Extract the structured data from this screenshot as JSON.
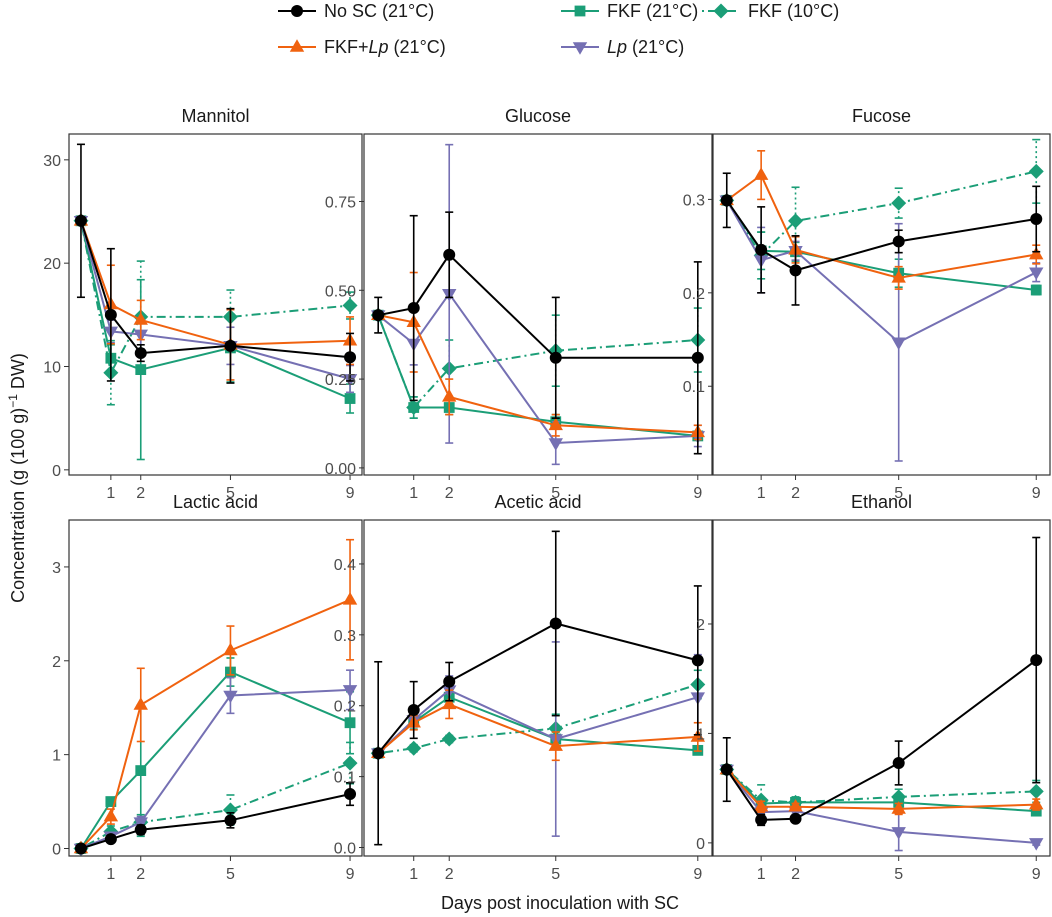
{
  "figure": {
    "ylabel_main": "Concentration (g (100 g)",
    "ylabel_sup": "−1",
    "ylabel_end": " DW)",
    "xlabel": "Days post inoculation with SC"
  },
  "legend": [
    {
      "key": "nosc",
      "text": "No SC (21°C)",
      "color": "#000000",
      "marker": "circle",
      "dash": "solid"
    },
    {
      "key": "fkf21",
      "text": "FKF (21°C)",
      "color": "#1b9e77",
      "marker": "square",
      "dash": "solid"
    },
    {
      "key": "fkf10",
      "text": "FKF (10°C)",
      "color": "#1b9e77",
      "marker": "diamond",
      "dash": "dotdash"
    },
    {
      "key": "fkflp",
      "text_pre": "FKF+",
      "text_it": "Lp",
      "text_post": " (21°C)",
      "color": "#f0620f",
      "marker": "triangle-up",
      "dash": "solid"
    },
    {
      "key": "lp",
      "text_pre": "",
      "text_it": "Lp",
      "text_post": " (21°C)",
      "color": "#7570b3",
      "marker": "triangle-down",
      "dash": "solid"
    }
  ],
  "chart_data": [
    {
      "type": "line",
      "title": "Mannitol",
      "xlabel": "Days post inoculation with SC",
      "ylabel": "Concentration (g (100 g)−1 DW)",
      "xlim": [
        -0.4,
        9.4
      ],
      "ylim": [
        -0.5,
        32.5
      ],
      "xticks": [
        1,
        2,
        5,
        9
      ],
      "yticks": [
        0,
        10,
        20,
        30
      ],
      "ytick_labels": [
        "0",
        "10",
        "20",
        "30"
      ],
      "series": [
        {
          "name": "No SC (21°C)",
          "x": [
            0,
            1,
            2,
            5,
            9
          ],
          "y": [
            24.1,
            15.0,
            11.3,
            12.0,
            10.9
          ],
          "err": [
            7.4,
            6.4,
            0.8,
            3.6,
            2.3
          ]
        },
        {
          "name": "FKF (21°C)",
          "x": [
            0,
            1,
            2,
            5,
            9
          ],
          "y": [
            24.1,
            10.8,
            9.7,
            11.8,
            6.9
          ],
          "err": [
            0.3,
            1.3,
            8.7,
            3.3,
            1.4
          ]
        },
        {
          "name": "FKF (10°C)",
          "x": [
            0,
            1,
            2,
            5,
            9
          ],
          "y": [
            24.1,
            9.4,
            14.8,
            14.8,
            15.9
          ],
          "err": [
            0.3,
            3.1,
            5.4,
            2.6,
            1.3
          ]
        },
        {
          "name": "FKF+Lp (21°C)",
          "x": [
            0,
            1,
            2,
            5,
            9
          ],
          "y": [
            24.1,
            16.0,
            14.5,
            12.1,
            12.5
          ],
          "err": [
            0.3,
            3.8,
            1.9,
            3.4,
            2.3
          ]
        },
        {
          "name": "Lp (21°C)",
          "x": [
            0,
            1,
            2,
            5,
            9
          ],
          "y": [
            24.1,
            13.4,
            13.1,
            12.0,
            8.8
          ],
          "err": [
            0.3,
            1.1,
            1.4,
            1.8,
            1.3
          ]
        }
      ]
    },
    {
      "type": "line",
      "title": "Glucose",
      "xlabel": "Days post inoculation with SC",
      "ylabel": "Concentration (g (100 g)−1 DW)",
      "xlim": [
        -0.4,
        9.4
      ],
      "ylim": [
        -0.02,
        0.94
      ],
      "xticks": [
        1,
        2,
        5,
        9
      ],
      "yticks": [
        0,
        0.25,
        0.5,
        0.75
      ],
      "ytick_labels": [
        "0.00",
        "0.25",
        "0.50",
        "0.75"
      ],
      "series": [
        {
          "name": "No SC (21°C)",
          "x": [
            0,
            1,
            2,
            5,
            9
          ],
          "y": [
            0.43,
            0.45,
            0.6,
            0.31,
            0.31
          ],
          "err": [
            0.05,
            0.26,
            0.12,
            0.17,
            0.27
          ]
        },
        {
          "name": "FKF (21°C)",
          "x": [
            0,
            1,
            2,
            5,
            9
          ],
          "y": [
            0.43,
            0.17,
            0.17,
            0.13,
            0.09
          ],
          "err": [
            0.01,
            0.03,
            0.02,
            0.02,
            0.01
          ]
        },
        {
          "name": "FKF (10°C)",
          "x": [
            0,
            1,
            2,
            5,
            9
          ],
          "y": [
            0.43,
            0.17,
            0.28,
            0.33,
            0.36
          ],
          "err": [
            0.01,
            0.03,
            0.08,
            0.1,
            0.09
          ]
        },
        {
          "name": "FKF+Lp (21°C)",
          "x": [
            0,
            1,
            2,
            5,
            9
          ],
          "y": [
            0.43,
            0.41,
            0.2,
            0.12,
            0.1
          ],
          "err": [
            0.01,
            0.14,
            0.05,
            0.03,
            0.02
          ]
        },
        {
          "name": "Lp (21°C)",
          "x": [
            0,
            1,
            2,
            5,
            9
          ],
          "y": [
            0.43,
            0.35,
            0.49,
            0.07,
            0.09
          ],
          "err": [
            0.01,
            0.06,
            0.42,
            0.06,
            0.03
          ]
        }
      ]
    },
    {
      "type": "line",
      "title": "Fucose",
      "xlabel": "Days post inoculation with SC",
      "ylabel": "Concentration (g (100 g)−1 DW)",
      "xlim": [
        -0.4,
        9.4
      ],
      "ylim": [
        0.005,
        0.37
      ],
      "xticks": [
        1,
        2,
        5,
        9
      ],
      "yticks": [
        0.1,
        0.2,
        0.3
      ],
      "ytick_labels": [
        "0.1",
        "0.2",
        "0.3"
      ],
      "series": [
        {
          "name": "No SC (21°C)",
          "x": [
            0,
            1,
            2,
            5,
            9
          ],
          "y": [
            0.299,
            0.246,
            0.224,
            0.255,
            0.279
          ],
          "err": [
            0.029,
            0.046,
            0.037,
            0.012,
            0.035
          ]
        },
        {
          "name": "FKF (21°C)",
          "x": [
            0,
            1,
            2,
            5,
            9
          ],
          "y": [
            0.299,
            0.245,
            0.244,
            0.221,
            0.203
          ],
          "err": [
            0.003,
            0.02,
            0.01,
            0.015,
            0.005
          ]
        },
        {
          "name": "FKF (10°C)",
          "x": [
            0,
            1,
            2,
            5,
            9
          ],
          "y": [
            0.299,
            0.24,
            0.277,
            0.296,
            0.33
          ],
          "err": [
            0.003,
            0.025,
            0.036,
            0.016,
            0.034
          ]
        },
        {
          "name": "FKF+Lp (21°C)",
          "x": [
            0,
            1,
            2,
            5,
            9
          ],
          "y": [
            0.299,
            0.326,
            0.246,
            0.216,
            0.241
          ],
          "err": [
            0.003,
            0.026,
            0.014,
            0.012,
            0.01
          ]
        },
        {
          "name": "Lp (21°C)",
          "x": [
            0,
            1,
            2,
            5,
            9
          ],
          "y": [
            0.299,
            0.235,
            0.245,
            0.147,
            0.222
          ],
          "err": [
            0.003,
            0.035,
            0.01,
            0.127,
            0.01
          ]
        }
      ]
    },
    {
      "type": "line",
      "title": "Lactic acid",
      "xlabel": "Days post inoculation with SC",
      "ylabel": "Concentration (g (100 g)−1 DW)",
      "xlim": [
        -0.4,
        9.4
      ],
      "ylim": [
        -0.08,
        3.5
      ],
      "xticks": [
        1,
        2,
        5,
        9
      ],
      "yticks": [
        0,
        1,
        2,
        3
      ],
      "ytick_labels": [
        "0",
        "1",
        "2",
        "3"
      ],
      "series": [
        {
          "name": "No SC (21°C)",
          "x": [
            0,
            1,
            2,
            5,
            9
          ],
          "y": [
            0,
            0.1,
            0.2,
            0.3,
            0.58
          ],
          "err": [
            0.02,
            0.03,
            0.05,
            0.08,
            0.12
          ]
        },
        {
          "name": "FKF (21°C)",
          "x": [
            0,
            1,
            2,
            5,
            9
          ],
          "y": [
            0,
            0.5,
            0.83,
            1.88,
            1.34
          ],
          "err": [
            0.02,
            0.03,
            0.7,
            0.15,
            0.33
          ]
        },
        {
          "name": "FKF (10°C)",
          "x": [
            0,
            1,
            2,
            5,
            9
          ],
          "y": [
            0,
            0.18,
            0.28,
            0.41,
            0.91
          ],
          "err": [
            0.02,
            0.06,
            0.08,
            0.16,
            0.22
          ]
        },
        {
          "name": "FKF+Lp (21°C)",
          "x": [
            0,
            1,
            2,
            5,
            9
          ],
          "y": [
            0,
            0.34,
            1.53,
            2.11,
            2.65
          ],
          "err": [
            0.02,
            0.08,
            0.39,
            0.26,
            0.64
          ]
        },
        {
          "name": "Lp (21°C)",
          "x": [
            0,
            1,
            2,
            5,
            9
          ],
          "y": [
            0,
            0.13,
            0.28,
            1.63,
            1.69
          ],
          "err": [
            0.02,
            0.04,
            0.06,
            0.19,
            0.21
          ]
        }
      ]
    },
    {
      "type": "line",
      "title": "Acetic acid",
      "xlabel": "Days post inoculation with SC",
      "ylabel": "Concentration (g (100 g)−1 DW)",
      "xlim": [
        -0.4,
        9.4
      ],
      "ylim": [
        -0.012,
        0.462
      ],
      "xticks": [
        1,
        2,
        5,
        9
      ],
      "yticks": [
        0,
        0.1,
        0.2,
        0.3,
        0.4
      ],
      "ytick_labels": [
        "0.0",
        "0.1",
        "0.2",
        "0.3",
        "0.4"
      ],
      "series": [
        {
          "name": "No SC (21°C)",
          "x": [
            0,
            1,
            2,
            5,
            9
          ],
          "y": [
            0.133,
            0.194,
            0.234,
            0.316,
            0.264
          ],
          "err": [
            0.129,
            0.04,
            0.027,
            0.13,
            0.105
          ]
        },
        {
          "name": "FKF (21°C)",
          "x": [
            0,
            1,
            2,
            5,
            9
          ],
          "y": [
            0.133,
            0.177,
            0.212,
            0.153,
            0.137
          ],
          "err": [
            0.002,
            0.01,
            0.01,
            0.01,
            0.005
          ]
        },
        {
          "name": "FKF (10°C)",
          "x": [
            0,
            1,
            2,
            5,
            9
          ],
          "y": [
            0.133,
            0.14,
            0.153,
            0.168,
            0.23
          ],
          "err": [
            0.002,
            0.005,
            0.005,
            0.02,
            0.02
          ]
        },
        {
          "name": "FKF+Lp (21°C)",
          "x": [
            0,
            1,
            2,
            5,
            9
          ],
          "y": [
            0.133,
            0.176,
            0.202,
            0.143,
            0.156
          ],
          "err": [
            0.002,
            0.01,
            0.02,
            0.02,
            0.02
          ]
        },
        {
          "name": "Lp (21°C)",
          "x": [
            0,
            1,
            2,
            5,
            9
          ],
          "y": [
            0.133,
            0.18,
            0.222,
            0.153,
            0.212
          ],
          "err": [
            0.002,
            0.01,
            0.02,
            0.137,
            0.06
          ]
        }
      ]
    },
    {
      "type": "line",
      "title": "Ethanol",
      "xlabel": "Days post inoculation with SC",
      "ylabel": "Concentration (g (100 g)−1 DW)",
      "xlim": [
        -0.4,
        9.4
      ],
      "ylim": [
        -0.12,
        2.95
      ],
      "xticks": [
        1,
        2,
        5,
        9
      ],
      "yticks": [
        0,
        1,
        2
      ],
      "ytick_labels": [
        "0",
        "1",
        "2"
      ],
      "series": [
        {
          "name": "No SC (21°C)",
          "x": [
            0,
            1,
            2,
            5,
            9
          ],
          "y": [
            0.67,
            0.21,
            0.22,
            0.73,
            1.67
          ],
          "err": [
            0.29,
            0.05,
            0.03,
            0.2,
            1.12
          ]
        },
        {
          "name": "FKF (21°C)",
          "x": [
            0,
            1,
            2,
            5,
            9
          ],
          "y": [
            0.67,
            0.36,
            0.37,
            0.37,
            0.29
          ],
          "err": [
            0.03,
            0.05,
            0.03,
            0.05,
            0.04
          ]
        },
        {
          "name": "FKF (10°C)",
          "x": [
            0,
            1,
            2,
            5,
            9
          ],
          "y": [
            0.67,
            0.39,
            0.37,
            0.42,
            0.47
          ],
          "err": [
            0.03,
            0.14,
            0.05,
            0.07,
            0.1
          ]
        },
        {
          "name": "FKF+Lp (21°C)",
          "x": [
            0,
            1,
            2,
            5,
            9
          ],
          "y": [
            0.67,
            0.33,
            0.33,
            0.31,
            0.35
          ],
          "err": [
            0.03,
            0.05,
            0.03,
            0.05,
            0.05
          ]
        },
        {
          "name": "Lp (21°C)",
          "x": [
            0,
            1,
            2,
            5,
            9
          ],
          "y": [
            0.67,
            0.28,
            0.29,
            0.1,
            0.0
          ],
          "err": [
            0.03,
            0.05,
            0.03,
            0.17,
            0.02
          ]
        }
      ]
    }
  ]
}
